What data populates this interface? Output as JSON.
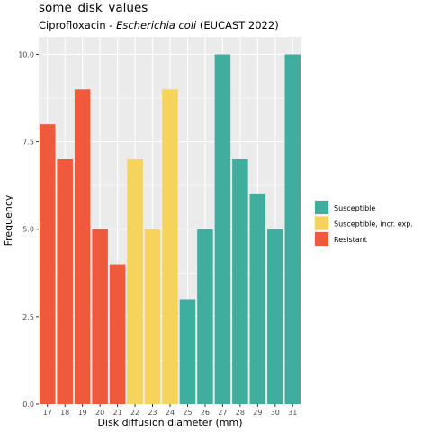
{
  "chart_data": {
    "type": "bar",
    "title": "some_disk_values",
    "subtitle": {
      "prefix": "Ciprofloxacin - ",
      "organism": "Escherichia coli",
      "suffix": " (EUCAST 2022)"
    },
    "xlabel": "Disk diffusion diameter (mm)",
    "ylabel": "Frequency",
    "ylim": [
      0,
      10.5
    ],
    "yticks": [
      "0.0",
      "2.5",
      "5.0",
      "7.5",
      "10.0"
    ],
    "ytick_values": [
      0,
      2.5,
      5,
      7.5,
      10
    ],
    "grid": true,
    "legend_position": "right",
    "categories": [
      "17",
      "18",
      "19",
      "20",
      "21",
      "22",
      "23",
      "24",
      "25",
      "26",
      "27",
      "28",
      "29",
      "30",
      "31"
    ],
    "values": [
      8,
      7,
      9,
      5,
      4,
      7,
      5,
      9,
      3,
      5,
      10,
      7,
      6,
      5,
      10
    ],
    "groups": [
      "Resistant",
      "Resistant",
      "Resistant",
      "Resistant",
      "Resistant",
      "Susceptible, incr. exp.",
      "Susceptible, incr. exp.",
      "Susceptible, incr. exp.",
      "Susceptible",
      "Susceptible",
      "Susceptible",
      "Susceptible",
      "Susceptible",
      "Susceptible",
      "Susceptible"
    ],
    "legend": [
      {
        "name": "Susceptible",
        "color": "#3FAE9F"
      },
      {
        "name": "Susceptible, incr. exp.",
        "color": "#F5D35C"
      },
      {
        "name": "Resistant",
        "color": "#EE5A3C"
      }
    ],
    "panel_background": "#EBEBEB",
    "grid_color": "#FFFFFF"
  }
}
